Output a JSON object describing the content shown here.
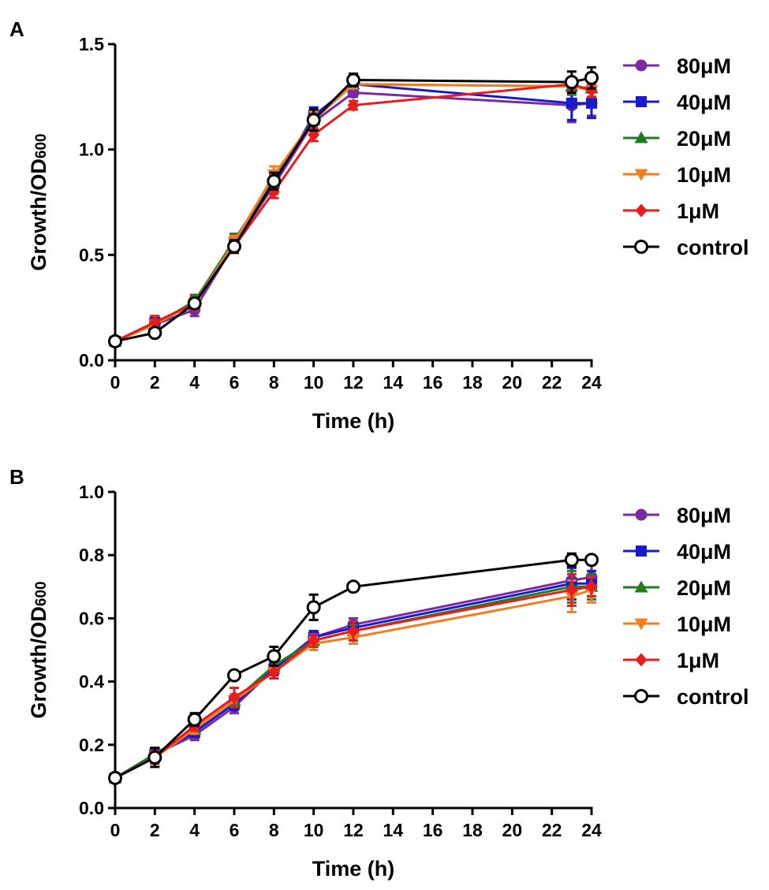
{
  "chart_data": [
    {
      "panel": "A",
      "type": "line",
      "xlabel": "Time (h)",
      "ylabel": "Growth/OD",
      "ylabel_sub": "600",
      "xlim": [
        0,
        24
      ],
      "ylim": [
        0,
        1.5
      ],
      "xticks": [
        0,
        2,
        4,
        6,
        8,
        10,
        12,
        14,
        16,
        18,
        20,
        22,
        24
      ],
      "yticks": [
        0.0,
        0.5,
        1.0,
        1.5
      ],
      "ytick_labels": [
        "0.0",
        "0.5",
        "1.0",
        "1.5"
      ],
      "x": [
        0,
        2,
        4,
        6,
        8,
        10,
        12,
        23,
        24
      ],
      "series": [
        {
          "name": "80μM",
          "color": "#7b2aa3",
          "marker": "circle",
          "values": [
            0.09,
            0.17,
            0.24,
            0.55,
            0.83,
            1.13,
            1.27,
            1.21,
            1.22
          ],
          "errors": [
            0.01,
            0.03,
            0.03,
            0.03,
            0.04,
            0.04,
            0.02,
            0.08,
            0.06
          ]
        },
        {
          "name": "40μM",
          "color": "#1a1acd",
          "marker": "square",
          "values": [
            0.09,
            0.18,
            0.27,
            0.56,
            0.84,
            1.16,
            1.31,
            1.22,
            1.22
          ],
          "errors": [
            0.01,
            0.03,
            0.03,
            0.03,
            0.04,
            0.04,
            0.02,
            0.08,
            0.07
          ]
        },
        {
          "name": "20μM",
          "color": "#1e7d1e",
          "marker": "triangle-up",
          "values": [
            0.09,
            0.17,
            0.28,
            0.57,
            0.86,
            1.14,
            1.31,
            1.3,
            1.29
          ],
          "errors": [
            0.01,
            0.02,
            0.03,
            0.03,
            0.04,
            0.04,
            0.02,
            0.04,
            0.04
          ]
        },
        {
          "name": "10μM",
          "color": "#f37d21",
          "marker": "triangle-down",
          "values": [
            0.09,
            0.17,
            0.27,
            0.56,
            0.88,
            1.14,
            1.31,
            1.3,
            1.28
          ],
          "errors": [
            0.01,
            0.02,
            0.03,
            0.03,
            0.04,
            0.04,
            0.02,
            0.03,
            0.03
          ]
        },
        {
          "name": "1μM",
          "color": "#e81c1c",
          "marker": "diamond",
          "values": [
            0.09,
            0.18,
            0.27,
            0.54,
            0.8,
            1.07,
            1.21,
            1.31,
            1.28
          ],
          "errors": [
            0.01,
            0.03,
            0.03,
            0.03,
            0.03,
            0.03,
            0.02,
            0.03,
            0.03
          ]
        },
        {
          "name": "control",
          "color": "#000000",
          "marker": "open-circle",
          "values": [
            0.09,
            0.13,
            0.27,
            0.54,
            0.85,
            1.14,
            1.33,
            1.32,
            1.34
          ],
          "errors": [
            0.01,
            0.01,
            0.02,
            0.03,
            0.04,
            0.05,
            0.03,
            0.05,
            0.05
          ]
        }
      ]
    },
    {
      "panel": "B",
      "type": "line",
      "xlabel": "Time (h)",
      "ylabel": "Growth/OD",
      "ylabel_sub": "600",
      "xlim": [
        0,
        24
      ],
      "ylim": [
        0,
        1.0
      ],
      "xticks": [
        0,
        2,
        4,
        6,
        8,
        10,
        12,
        14,
        16,
        18,
        20,
        22,
        24
      ],
      "yticks": [
        0.0,
        0.2,
        0.4,
        0.6,
        0.8,
        1.0
      ],
      "ytick_labels": [
        "0.0",
        "0.2",
        "0.4",
        "0.6",
        "0.8",
        "1.0"
      ],
      "x": [
        0,
        2,
        4,
        6,
        8,
        10,
        12,
        23,
        24
      ],
      "series": [
        {
          "name": "80μM",
          "color": "#7b2aa3",
          "marker": "circle",
          "values": [
            0.095,
            0.17,
            0.23,
            0.32,
            0.44,
            0.54,
            0.58,
            0.72,
            0.73
          ],
          "errors": [
            0.005,
            0.02,
            0.015,
            0.02,
            0.02,
            0.02,
            0.02,
            0.04,
            0.04
          ]
        },
        {
          "name": "40μM",
          "color": "#1a1acd",
          "marker": "square",
          "values": [
            0.095,
            0.17,
            0.24,
            0.33,
            0.44,
            0.54,
            0.57,
            0.71,
            0.71
          ],
          "errors": [
            0.005,
            0.02,
            0.015,
            0.02,
            0.02,
            0.02,
            0.02,
            0.05,
            0.04
          ]
        },
        {
          "name": "20μM",
          "color": "#1e7d1e",
          "marker": "triangle-up",
          "values": [
            0.095,
            0.17,
            0.25,
            0.34,
            0.45,
            0.53,
            0.56,
            0.7,
            0.7
          ],
          "errors": [
            0.005,
            0.02,
            0.015,
            0.02,
            0.02,
            0.02,
            0.02,
            0.05,
            0.04
          ]
        },
        {
          "name": "10μM",
          "color": "#f37d21",
          "marker": "triangle-down",
          "values": [
            0.095,
            0.16,
            0.25,
            0.34,
            0.43,
            0.52,
            0.54,
            0.67,
            0.69
          ],
          "errors": [
            0.005,
            0.02,
            0.015,
            0.02,
            0.02,
            0.02,
            0.02,
            0.05,
            0.04
          ]
        },
        {
          "name": "1μM",
          "color": "#e81c1c",
          "marker": "diamond",
          "values": [
            0.095,
            0.16,
            0.26,
            0.35,
            0.43,
            0.53,
            0.56,
            0.69,
            0.7
          ],
          "errors": [
            0.005,
            0.02,
            0.015,
            0.03,
            0.02,
            0.02,
            0.03,
            0.05,
            0.03
          ]
        },
        {
          "name": "control",
          "color": "#000000",
          "marker": "open-circle",
          "values": [
            0.095,
            0.16,
            0.28,
            0.42,
            0.48,
            0.635,
            0.7,
            0.785,
            0.785
          ],
          "errors": [
            0.005,
            0.03,
            0.02,
            0.01,
            0.03,
            0.04,
            0.01,
            0.02,
            0.01
          ]
        }
      ]
    }
  ],
  "panels": [
    {
      "label": "A"
    },
    {
      "label": "B"
    }
  ]
}
